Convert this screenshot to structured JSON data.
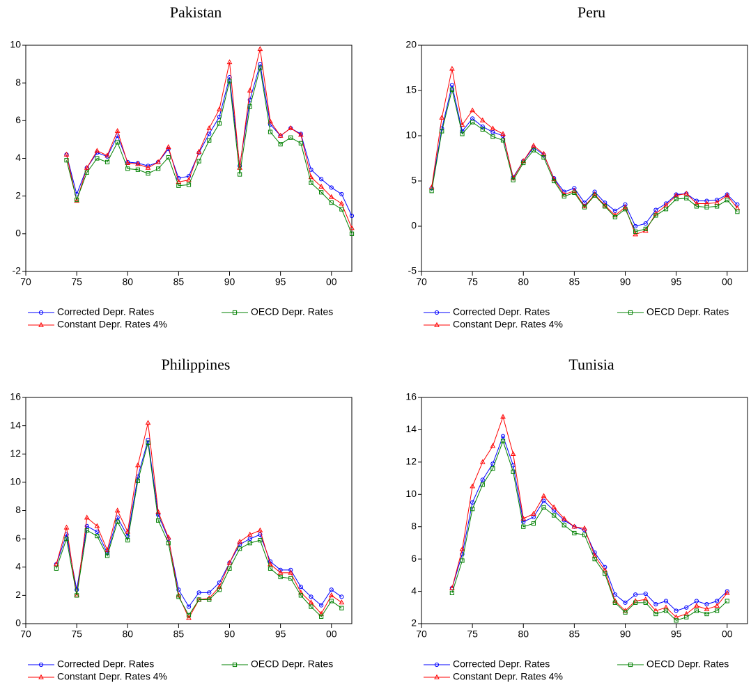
{
  "chart_data": [
    {
      "type": "line",
      "title": "Pakistan",
      "x": [
        1974,
        1975,
        1976,
        1977,
        1978,
        1979,
        1980,
        1981,
        1982,
        1983,
        1984,
        1985,
        1986,
        1987,
        1988,
        1989,
        1990,
        1991,
        1992,
        1993,
        1994,
        1995,
        1996,
        1997,
        1998,
        1999,
        2000,
        2001,
        2002
      ],
      "xlim": [
        1970,
        2002
      ],
      "xticks": [
        {
          "value": 1970,
          "label": "70"
        },
        {
          "value": 1975,
          "label": "75"
        },
        {
          "value": 1980,
          "label": "80"
        },
        {
          "value": 1985,
          "label": "85"
        },
        {
          "value": 1990,
          "label": "90"
        },
        {
          "value": 1995,
          "label": "95"
        },
        {
          "value": 2000,
          "label": "00"
        }
      ],
      "ylim": [
        -2,
        10
      ],
      "yticks": [
        -2,
        0,
        2,
        4,
        6,
        8,
        10
      ],
      "series": [
        {
          "name": "Corrected Depr. Rates",
          "color": "#0000ff",
          "marker": "circle",
          "values": [
            4.2,
            2.1,
            3.5,
            4.3,
            4.1,
            5.2,
            3.8,
            3.75,
            3.6,
            3.8,
            4.5,
            2.95,
            3.05,
            4.3,
            5.3,
            6.2,
            8.3,
            3.6,
            7.1,
            9.0,
            5.8,
            5.2,
            5.6,
            5.3,
            3.4,
            2.9,
            2.45,
            2.1,
            0.95
          ]
        },
        {
          "name": "Constant Depr. Rates 4%",
          "color": "#ff0000",
          "marker": "triangle",
          "values": [
            4.2,
            1.75,
            3.5,
            4.4,
            4.15,
            5.45,
            3.75,
            3.7,
            3.5,
            3.8,
            4.6,
            2.75,
            2.85,
            4.35,
            5.6,
            6.6,
            9.1,
            3.5,
            7.6,
            9.8,
            5.95,
            5.2,
            5.6,
            5.25,
            3.0,
            2.5,
            1.95,
            1.6,
            0.3
          ]
        },
        {
          "name": "OECD Depr. Rates",
          "color": "#008000",
          "marker": "square",
          "values": [
            3.9,
            1.8,
            3.25,
            4.0,
            3.8,
            4.85,
            3.45,
            3.4,
            3.2,
            3.45,
            4.05,
            2.55,
            2.6,
            3.85,
            4.95,
            5.85,
            8.1,
            3.15,
            6.75,
            8.8,
            5.4,
            4.75,
            5.1,
            4.8,
            2.7,
            2.2,
            1.65,
            1.3,
            0.0
          ]
        }
      ]
    },
    {
      "type": "line",
      "title": "Peru",
      "x": [
        1971,
        1972,
        1973,
        1974,
        1975,
        1976,
        1977,
        1978,
        1979,
        1980,
        1981,
        1982,
        1983,
        1984,
        1985,
        1986,
        1987,
        1988,
        1989,
        1990,
        1991,
        1992,
        1993,
        1994,
        1995,
        1996,
        1997,
        1998,
        1999,
        2000,
        2001
      ],
      "xlim": [
        1970,
        2002
      ],
      "xticks": [
        {
          "value": 1970,
          "label": "70"
        },
        {
          "value": 1975,
          "label": "75"
        },
        {
          "value": 1980,
          "label": "80"
        },
        {
          "value": 1985,
          "label": "85"
        },
        {
          "value": 1990,
          "label": "90"
        },
        {
          "value": 1995,
          "label": "95"
        },
        {
          "value": 2000,
          "label": "00"
        }
      ],
      "ylim": [
        -5,
        20
      ],
      "yticks": [
        -5,
        0,
        5,
        10,
        15,
        20
      ],
      "series": [
        {
          "name": "Corrected Depr. Rates",
          "color": "#0000ff",
          "marker": "circle",
          "values": [
            4.2,
            10.8,
            15.6,
            10.5,
            11.9,
            11.0,
            10.4,
            10.0,
            5.4,
            7.2,
            8.7,
            7.9,
            5.3,
            3.8,
            4.2,
            2.6,
            3.8,
            2.6,
            1.7,
            2.4,
            0.0,
            0.3,
            1.8,
            2.5,
            3.5,
            3.6,
            2.8,
            2.8,
            2.9,
            3.5,
            2.4
          ]
        },
        {
          "name": "Constant Depr. Rates 4%",
          "color": "#ff0000",
          "marker": "triangle",
          "values": [
            4.3,
            12.0,
            17.4,
            11.2,
            12.8,
            11.7,
            10.8,
            10.2,
            5.3,
            7.2,
            8.9,
            8.0,
            5.2,
            3.5,
            3.9,
            2.2,
            3.5,
            2.3,
            1.2,
            2.1,
            -0.9,
            -0.5,
            1.4,
            2.3,
            3.4,
            3.6,
            2.5,
            2.5,
            2.6,
            3.4,
            2.0
          ]
        },
        {
          "name": "OECD Depr. Rates",
          "color": "#008000",
          "marker": "square",
          "values": [
            3.9,
            10.5,
            15.1,
            10.2,
            11.5,
            10.7,
            9.9,
            9.5,
            5.1,
            7.0,
            8.4,
            7.6,
            5.0,
            3.3,
            3.7,
            2.1,
            3.4,
            2.2,
            1.0,
            1.9,
            -0.6,
            -0.3,
            1.2,
            1.9,
            3.0,
            3.1,
            2.2,
            2.1,
            2.2,
            2.9,
            1.6
          ]
        }
      ]
    },
    {
      "type": "line",
      "title": "Philippines",
      "x": [
        1973,
        1974,
        1975,
        1976,
        1977,
        1978,
        1979,
        1980,
        1981,
        1982,
        1983,
        1984,
        1985,
        1986,
        1987,
        1988,
        1989,
        1990,
        1991,
        1992,
        1993,
        1994,
        1995,
        1996,
        1997,
        1998,
        1999,
        2000,
        2001
      ],
      "xlim": [
        1970,
        2002
      ],
      "xticks": [
        {
          "value": 1970,
          "label": "70"
        },
        {
          "value": 1975,
          "label": "75"
        },
        {
          "value": 1980,
          "label": "80"
        },
        {
          "value": 1985,
          "label": "85"
        },
        {
          "value": 1990,
          "label": "90"
        },
        {
          "value": 1995,
          "label": "95"
        },
        {
          "value": 2000,
          "label": "00"
        }
      ],
      "ylim": [
        0,
        16
      ],
      "yticks": [
        0,
        2,
        4,
        6,
        8,
        10,
        12,
        14,
        16
      ],
      "series": [
        {
          "name": "Corrected Depr. Rates",
          "color": "#0000ff",
          "marker": "circle",
          "values": [
            4.2,
            6.3,
            2.4,
            6.9,
            6.5,
            5.0,
            7.5,
            6.2,
            10.4,
            13.0,
            7.7,
            6.0,
            2.4,
            1.2,
            2.2,
            2.2,
            2.9,
            4.3,
            5.6,
            6.0,
            6.3,
            4.4,
            3.8,
            3.8,
            2.6,
            1.9,
            1.3,
            2.4,
            1.9
          ]
        },
        {
          "name": "Constant Depr. Rates 4%",
          "color": "#ff0000",
          "marker": "triangle",
          "values": [
            4.2,
            6.8,
            2.0,
            7.5,
            6.9,
            5.2,
            8.0,
            6.5,
            11.2,
            14.2,
            7.9,
            6.1,
            2.0,
            0.4,
            1.7,
            1.8,
            2.6,
            4.3,
            5.8,
            6.3,
            6.6,
            4.2,
            3.6,
            3.6,
            2.2,
            1.5,
            0.7,
            2.0,
            1.5
          ]
        },
        {
          "name": "OECD Depr. Rates",
          "color": "#008000",
          "marker": "square",
          "values": [
            3.9,
            6.0,
            2.0,
            6.6,
            6.2,
            4.8,
            7.2,
            5.9,
            10.1,
            12.8,
            7.3,
            5.7,
            1.9,
            0.6,
            1.7,
            1.7,
            2.4,
            3.9,
            5.3,
            5.7,
            5.9,
            3.9,
            3.3,
            3.2,
            2.0,
            1.2,
            0.5,
            1.6,
            1.1
          ]
        }
      ]
    },
    {
      "type": "line",
      "title": "Tunisia",
      "x": [
        1973,
        1974,
        1975,
        1976,
        1977,
        1978,
        1979,
        1980,
        1981,
        1982,
        1983,
        1984,
        1985,
        1986,
        1987,
        1988,
        1989,
        1990,
        1991,
        1992,
        1993,
        1994,
        1995,
        1996,
        1997,
        1998,
        1999,
        2000
      ],
      "xlim": [
        1970,
        2002
      ],
      "xticks": [
        {
          "value": 1970,
          "label": "70"
        },
        {
          "value": 1975,
          "label": "75"
        },
        {
          "value": 1980,
          "label": "80"
        },
        {
          "value": 1985,
          "label": "85"
        },
        {
          "value": 1990,
          "label": "90"
        },
        {
          "value": 1995,
          "label": "95"
        },
        {
          "value": 2000,
          "label": "00"
        }
      ],
      "ylim": [
        2,
        16
      ],
      "yticks": [
        2,
        4,
        6,
        8,
        10,
        12,
        14,
        16
      ],
      "series": [
        {
          "name": "Corrected Depr. Rates",
          "color": "#0000ff",
          "marker": "circle",
          "values": [
            4.2,
            6.3,
            9.5,
            10.9,
            11.9,
            13.6,
            11.8,
            8.3,
            8.6,
            9.6,
            9.0,
            8.4,
            8.0,
            7.8,
            6.4,
            5.5,
            3.8,
            3.3,
            3.8,
            3.85,
            3.2,
            3.4,
            2.8,
            3.0,
            3.4,
            3.2,
            3.4,
            4.0
          ]
        },
        {
          "name": "Constant Depr. Rates 4%",
          "color": "#ff0000",
          "marker": "triangle",
          "values": [
            4.2,
            6.6,
            10.5,
            12.0,
            13.0,
            14.8,
            12.5,
            8.5,
            8.8,
            9.9,
            9.2,
            8.5,
            8.0,
            7.9,
            6.2,
            5.3,
            3.4,
            2.8,
            3.4,
            3.5,
            2.8,
            3.0,
            2.4,
            2.6,
            3.1,
            2.9,
            3.1,
            3.9
          ]
        },
        {
          "name": "OECD Depr. Rates",
          "color": "#008000",
          "marker": "square",
          "values": [
            3.9,
            5.9,
            9.1,
            10.6,
            11.6,
            13.3,
            11.4,
            8.0,
            8.2,
            9.2,
            8.7,
            8.1,
            7.6,
            7.5,
            6.0,
            5.1,
            3.3,
            2.7,
            3.3,
            3.3,
            2.6,
            2.8,
            2.2,
            2.4,
            2.8,
            2.6,
            2.8,
            3.4
          ]
        }
      ]
    }
  ]
}
